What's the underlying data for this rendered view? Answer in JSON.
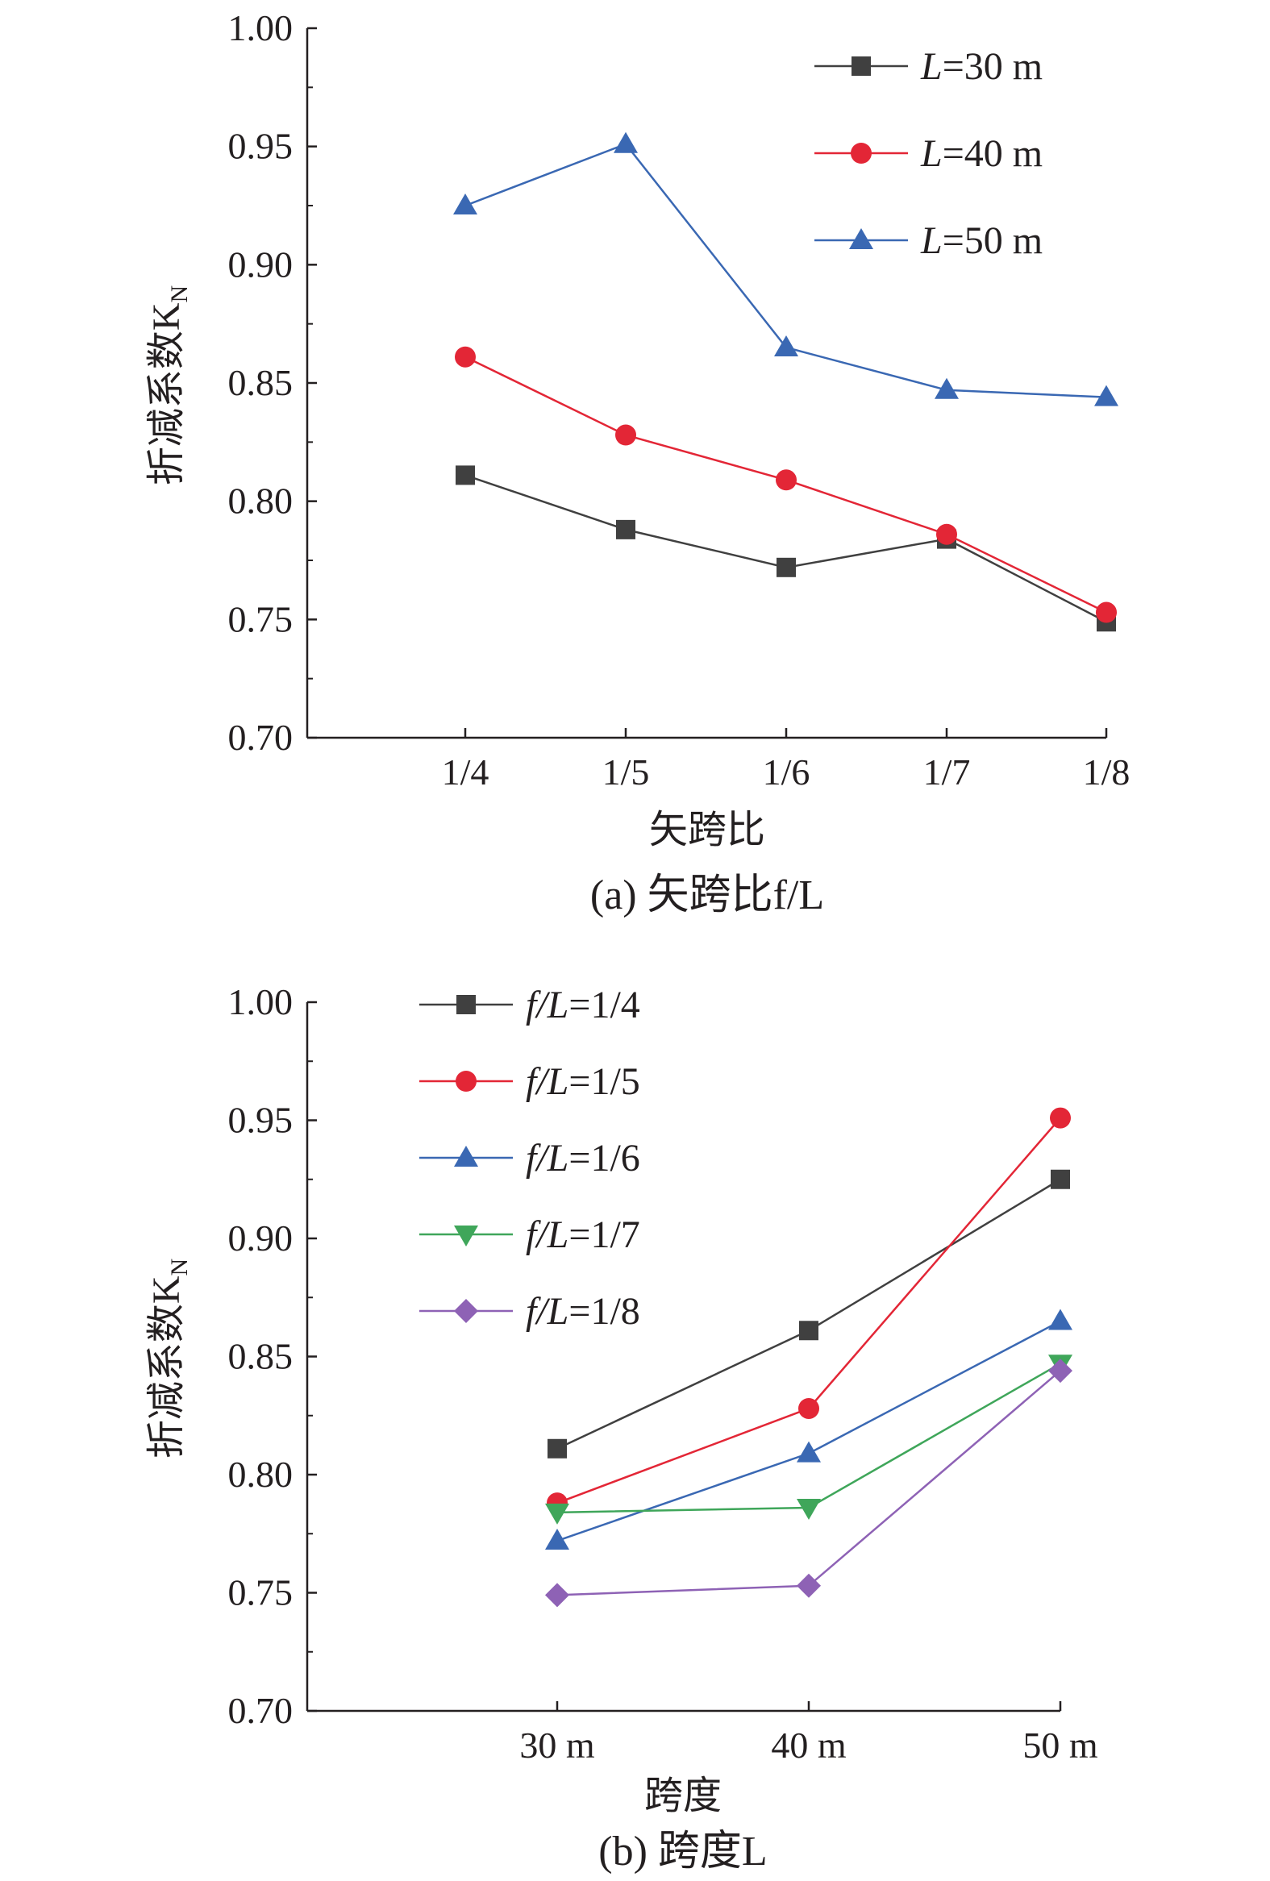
{
  "chart_data": [
    {
      "type": "line",
      "caption": "(a) 矢跨比f/L",
      "xlabel": "矢跨比",
      "ylabel": "折减系数K",
      "ylabel_sub": "N",
      "categories": [
        "1/4",
        "1/5",
        "1/6",
        "1/7",
        "1/8"
      ],
      "ylim": [
        0.7,
        1.0
      ],
      "yticks": [
        "0.70",
        "0.75",
        "0.80",
        "0.85",
        "0.90",
        "0.95",
        "1.00"
      ],
      "grid": false,
      "legend_position": "top-right",
      "series": [
        {
          "name_var": "L",
          "name_rest": "=30 m",
          "color": "#404040",
          "marker": "square",
          "values": [
            0.811,
            0.788,
            0.772,
            0.784,
            0.749
          ]
        },
        {
          "name_var": "L",
          "name_rest": "=40 m",
          "color": "#e32636",
          "marker": "circle",
          "values": [
            0.861,
            0.828,
            0.809,
            0.786,
            0.753
          ]
        },
        {
          "name_var": "L",
          "name_rest": "=50 m",
          "color": "#3a68b3",
          "marker": "triangle-up",
          "values": [
            0.925,
            0.951,
            0.865,
            0.847,
            0.844
          ]
        }
      ]
    },
    {
      "type": "line",
      "caption": "(b) 跨度L",
      "xlabel": "跨度",
      "ylabel": "折减系数K",
      "ylabel_sub": "N",
      "categories": [
        "30 m",
        "40 m",
        "50 m"
      ],
      "ylim": [
        0.7,
        1.0
      ],
      "yticks": [
        "0.70",
        "0.75",
        "0.80",
        "0.85",
        "0.90",
        "0.95",
        "1.00"
      ],
      "grid": false,
      "legend_position": "top-left",
      "series": [
        {
          "name_var": "f/L",
          "name_rest": "=1/4",
          "color": "#404040",
          "marker": "square",
          "values": [
            0.811,
            0.861,
            0.925
          ]
        },
        {
          "name_var": "f/L",
          "name_rest": "=1/5",
          "color": "#e32636",
          "marker": "circle",
          "values": [
            0.788,
            0.828,
            0.951
          ]
        },
        {
          "name_var": "f/L",
          "name_rest": "=1/6",
          "color": "#3a68b3",
          "marker": "triangle-up",
          "values": [
            0.772,
            0.809,
            0.865
          ]
        },
        {
          "name_var": "f/L",
          "name_rest": "=1/7",
          "color": "#3fa65a",
          "marker": "triangle-down",
          "values": [
            0.784,
            0.786,
            0.847
          ]
        },
        {
          "name_var": "f/L",
          "name_rest": "=1/8",
          "color": "#8e62b5",
          "marker": "diamond",
          "values": [
            0.749,
            0.753,
            0.844
          ]
        }
      ]
    }
  ]
}
